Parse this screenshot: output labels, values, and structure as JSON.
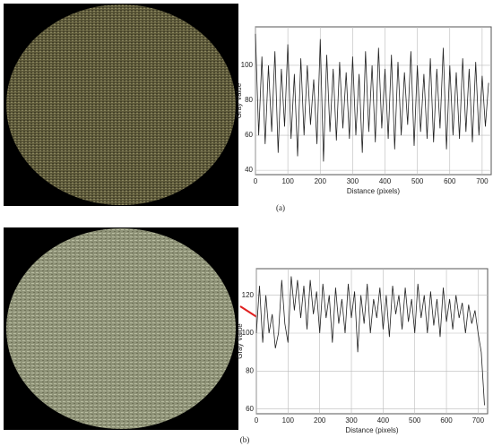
{
  "chart_data": [
    {
      "type": "line",
      "caption": "(a)",
      "xlabel": "Distance (pixels)",
      "ylabel": "Gray Value",
      "x": [
        0,
        10,
        20,
        30,
        40,
        50,
        60,
        70,
        80,
        90,
        100,
        110,
        120,
        130,
        140,
        150,
        160,
        170,
        180,
        190,
        200,
        210,
        220,
        230,
        240,
        250,
        260,
        270,
        280,
        290,
        300,
        310,
        320,
        330,
        340,
        350,
        360,
        370,
        380,
        390,
        400,
        410,
        420,
        430,
        440,
        450,
        460,
        470,
        480,
        490,
        500,
        510,
        520,
        530,
        540,
        550,
        560,
        570,
        580,
        590,
        600,
        610,
        620,
        630,
        640,
        650,
        660,
        670,
        680,
        690,
        700,
        710,
        720
      ],
      "series": [
        {
          "color": "#222222",
          "values": [
            118,
            60,
            105,
            55,
            100,
            62,
            108,
            50,
            98,
            65,
            112,
            58,
            95,
            48,
            104,
            60,
            100,
            66,
            92,
            55,
            115,
            45,
            106,
            62,
            98,
            57,
            102,
            64,
            96,
            58,
            105,
            60,
            95,
            50,
            108,
            62,
            100,
            56,
            110,
            64,
            98,
            58,
            106,
            52,
            102,
            60,
            96,
            66,
            108,
            54,
            100,
            62,
            95,
            58,
            104,
            56,
            98,
            64,
            110,
            52,
            100,
            60,
            96,
            58,
            104,
            62,
            98,
            56,
            102,
            60,
            94,
            65,
            90
          ]
        }
      ],
      "xlim": [
        0,
        728
      ],
      "ylim": [
        37.5,
        122
      ],
      "xticks": [
        0,
        100,
        200,
        300,
        400,
        500,
        600,
        700
      ],
      "yticks": [
        40,
        60,
        80,
        100
      ],
      "grid": true
    },
    {
      "type": "line",
      "caption": "(b)",
      "xlabel": "Distance (pixels)",
      "ylabel": "Gray Value",
      "x": [
        0,
        10,
        20,
        30,
        40,
        50,
        60,
        70,
        80,
        90,
        100,
        110,
        120,
        130,
        140,
        150,
        160,
        170,
        180,
        190,
        200,
        210,
        220,
        230,
        240,
        250,
        260,
        270,
        280,
        290,
        300,
        310,
        320,
        330,
        340,
        350,
        360,
        370,
        380,
        390,
        400,
        410,
        420,
        430,
        440,
        450,
        460,
        470,
        480,
        490,
        500,
        510,
        520,
        530,
        540,
        550,
        560,
        570,
        580,
        590,
        600,
        610,
        620,
        630,
        640,
        650,
        660,
        670,
        680,
        690,
        700,
        710,
        720
      ],
      "series": [
        {
          "color": "#222222",
          "values": [
            100,
            125,
            95,
            120,
            100,
            110,
            92,
            100,
            128,
            105,
            95,
            130,
            112,
            128,
            108,
            125,
            102,
            128,
            110,
            122,
            100,
            126,
            108,
            120,
            95,
            124,
            105,
            118,
            100,
            126,
            108,
            122,
            90,
            120,
            105,
            126,
            100,
            118,
            108,
            124,
            102,
            120,
            98,
            125,
            110,
            120,
            102,
            124,
            106,
            118,
            100,
            126,
            108,
            120,
            100,
            122,
            104,
            118,
            98,
            124,
            106,
            118,
            102,
            120,
            108,
            116,
            100,
            115,
            105,
            112,
            100,
            90,
            62
          ]
        }
      ],
      "xlim": [
        0,
        730
      ],
      "ylim": [
        57.5,
        134
      ],
      "xticks": [
        0,
        100,
        200,
        300,
        400,
        500,
        600,
        700
      ],
      "yticks": [
        60,
        80,
        100,
        120
      ],
      "grid": true
    }
  ]
}
